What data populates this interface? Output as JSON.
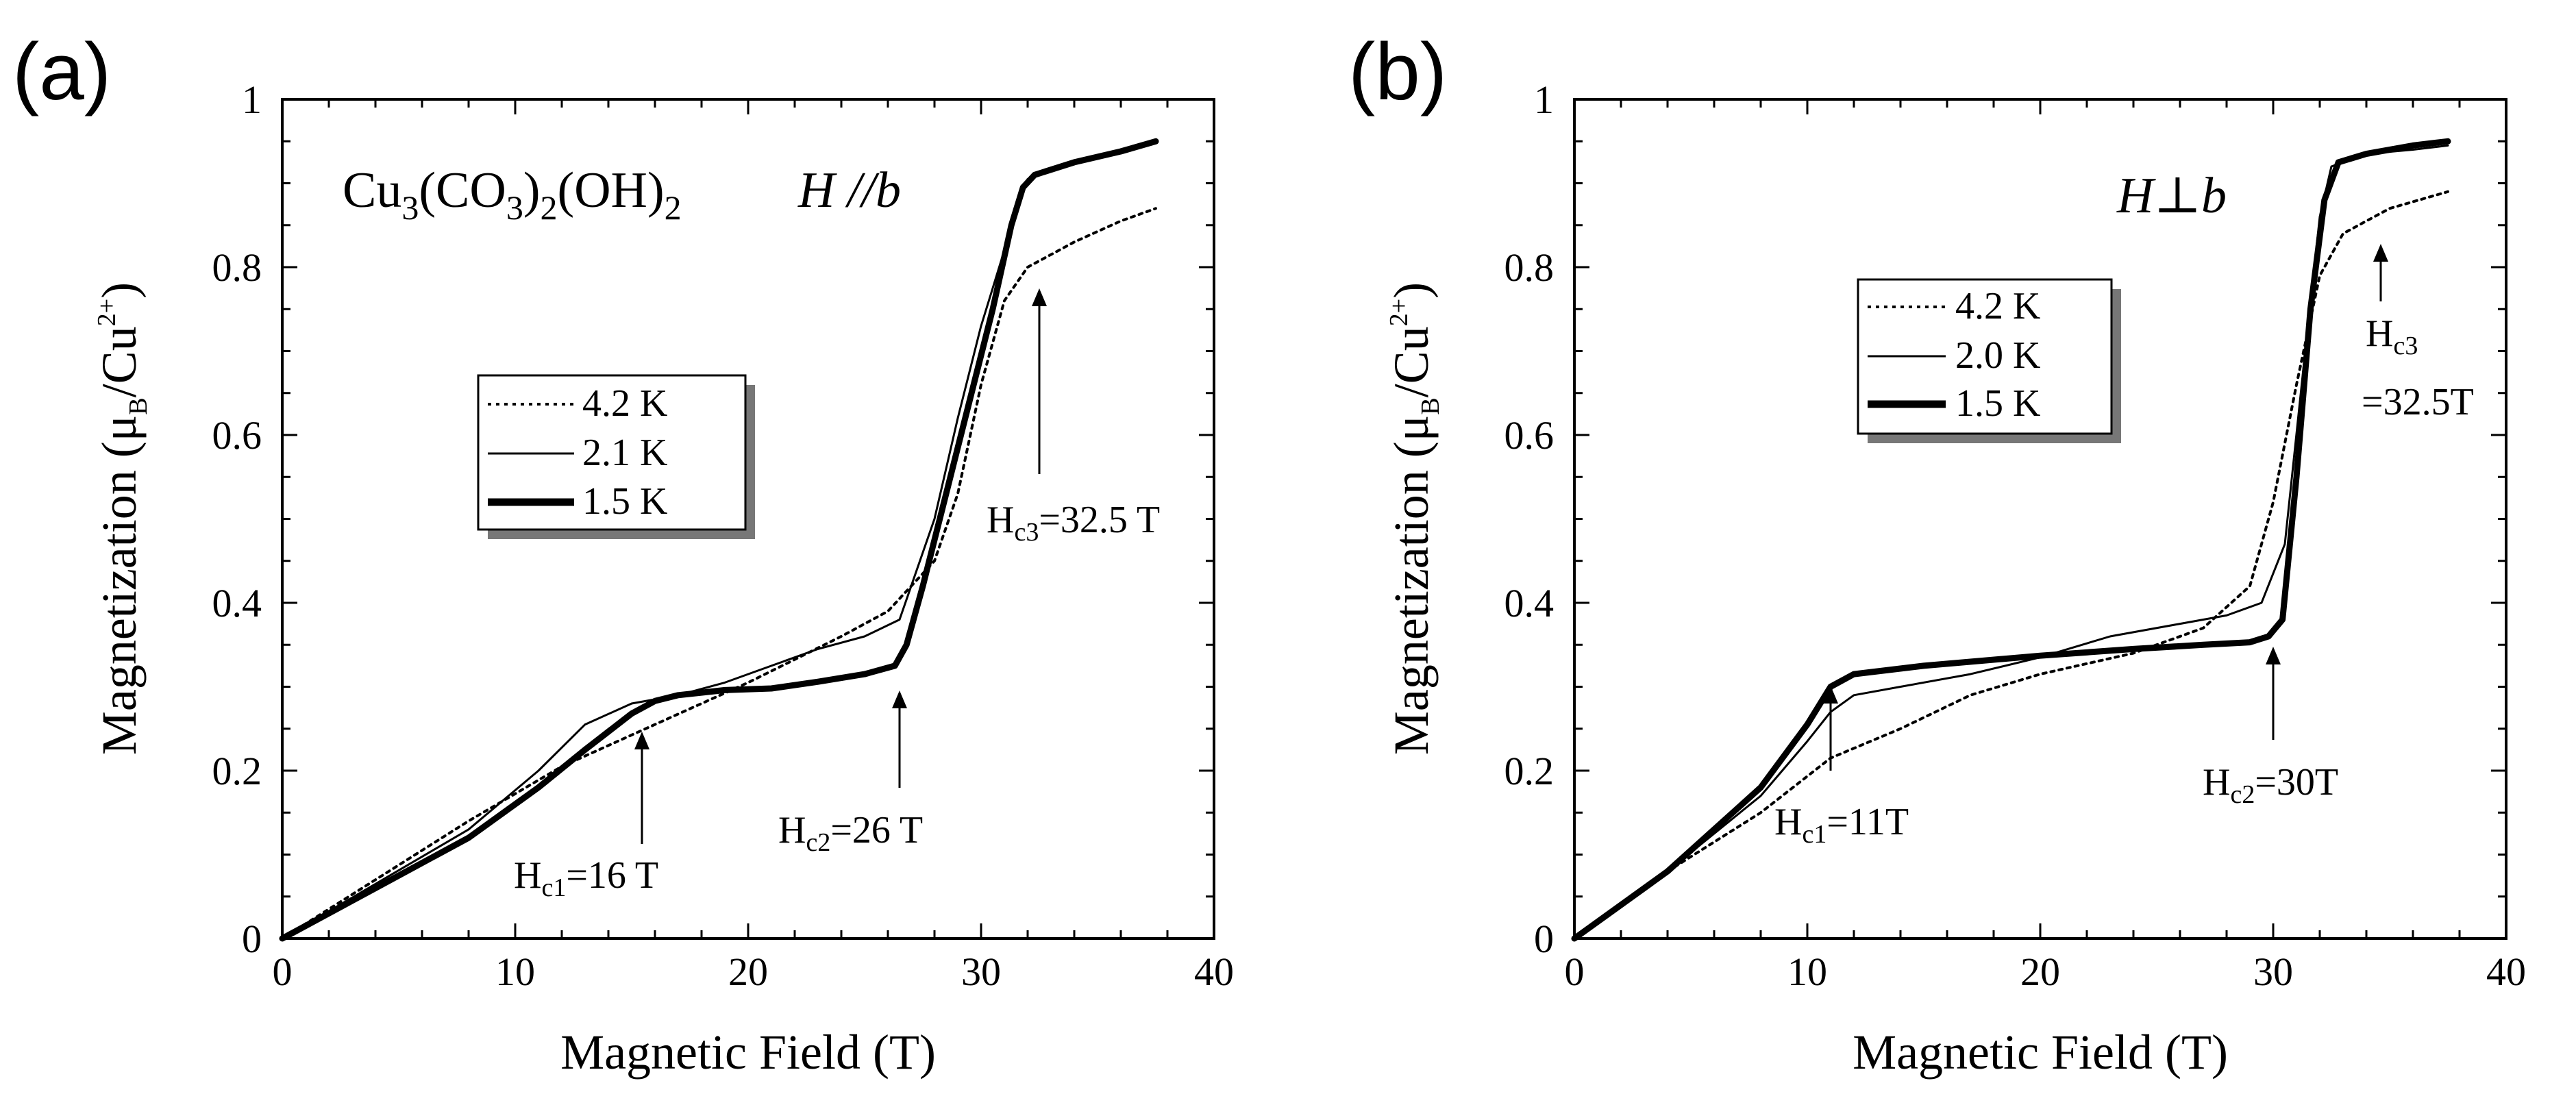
{
  "chart_data": [
    {
      "panel": "(a)",
      "type": "line",
      "title_formula": [
        "Cu",
        "3",
        "(CO",
        "3",
        ")",
        "2",
        "(OH)",
        "2"
      ],
      "title_condition": "H //b",
      "xlabel": "Magnetic Field (T)",
      "ylabel": [
        "Magnetization (μ",
        "B",
        "/Cu",
        "2+",
        ")"
      ],
      "xlim": [
        0,
        40
      ],
      "ylim": [
        0,
        1
      ],
      "xticks": [
        "0",
        "10",
        "20",
        "30",
        "40"
      ],
      "yticks": [
        "0",
        "0.2",
        "0.4",
        "0.6",
        "0.8",
        "1"
      ],
      "legend": [
        "4.2 K",
        "2.1 K",
        "1.5 K"
      ],
      "series": [
        {
          "name": "4.2 K",
          "style": "dotted",
          "points": [
            [
              0,
              0
            ],
            [
              4,
              0.07
            ],
            [
              8,
              0.14
            ],
            [
              12,
              0.205
            ],
            [
              16,
              0.255
            ],
            [
              20,
              0.305
            ],
            [
              24,
              0.36
            ],
            [
              26,
              0.39
            ],
            [
              28,
              0.45
            ],
            [
              29,
              0.53
            ],
            [
              30,
              0.66
            ],
            [
              31,
              0.76
            ],
            [
              32,
              0.8
            ],
            [
              34,
              0.83
            ],
            [
              36,
              0.855
            ],
            [
              37.5,
              0.87
            ]
          ]
        },
        {
          "name": "2.1 K",
          "style": "thin",
          "points": [
            [
              0,
              0
            ],
            [
              4,
              0.065
            ],
            [
              8,
              0.13
            ],
            [
              11,
              0.2
            ],
            [
              13,
              0.255
            ],
            [
              15,
              0.28
            ],
            [
              17,
              0.29
            ],
            [
              19,
              0.305
            ],
            [
              21,
              0.325
            ],
            [
              23,
              0.345
            ],
            [
              25,
              0.36
            ],
            [
              26.5,
              0.38
            ],
            [
              27,
              0.42
            ],
            [
              28,
              0.5
            ],
            [
              29,
              0.62
            ],
            [
              30,
              0.73
            ],
            [
              31,
              0.82
            ],
            [
              31.6,
              0.88
            ],
            [
              32,
              0.905
            ],
            [
              34,
              0.925
            ],
            [
              36,
              0.94
            ],
            [
              37.5,
              0.95
            ]
          ]
        },
        {
          "name": "1.5 K",
          "style": "thick",
          "points": [
            [
              0,
              0
            ],
            [
              4,
              0.06
            ],
            [
              8,
              0.12
            ],
            [
              11,
              0.18
            ],
            [
              13,
              0.225
            ],
            [
              15,
              0.268
            ],
            [
              16,
              0.283
            ],
            [
              17,
              0.29
            ],
            [
              19,
              0.296
            ],
            [
              21,
              0.298
            ],
            [
              23,
              0.306
            ],
            [
              25,
              0.315
            ],
            [
              26.3,
              0.325
            ],
            [
              26.8,
              0.35
            ],
            [
              27.5,
              0.42
            ],
            [
              28.5,
              0.53
            ],
            [
              29.5,
              0.64
            ],
            [
              30.5,
              0.75
            ],
            [
              31.3,
              0.85
            ],
            [
              31.8,
              0.895
            ],
            [
              32.3,
              0.91
            ],
            [
              34,
              0.925
            ],
            [
              36,
              0.938
            ],
            [
              37.5,
              0.95
            ]
          ]
        }
      ],
      "annotations": [
        {
          "main": "H",
          "sub": "c1",
          "tail": "=16 T",
          "x": 16,
          "y": 0.235
        },
        {
          "main": "H",
          "sub": "c2",
          "tail": "=26 T",
          "x": 26.5,
          "y": 0.295
        },
        {
          "main": "H",
          "sub": "c3",
          "tail": "=32.5 T",
          "x": 32.5,
          "y": 0.78
        }
      ]
    },
    {
      "panel": "(b)",
      "type": "line",
      "title_condition": "H⊥b",
      "xlabel": "Magnetic Field (T)",
      "ylabel": [
        "Magnetization (μ",
        "B",
        "/Cu",
        "2+",
        ")"
      ],
      "xlim": [
        0,
        40
      ],
      "ylim": [
        0,
        1
      ],
      "xticks": [
        "0",
        "10",
        "20",
        "30",
        "40"
      ],
      "yticks": [
        "0",
        "0.2",
        "0.4",
        "0.6",
        "0.8",
        "1"
      ],
      "legend": [
        "4.2 K",
        "2.0 K",
        "1.5 K"
      ],
      "series": [
        {
          "name": "4.2 K",
          "style": "dotted",
          "points": [
            [
              0,
              0
            ],
            [
              4,
              0.08
            ],
            [
              8,
              0.15
            ],
            [
              11,
              0.215
            ],
            [
              14,
              0.25
            ],
            [
              17,
              0.29
            ],
            [
              20,
              0.315
            ],
            [
              24,
              0.34
            ],
            [
              27,
              0.37
            ],
            [
              29,
              0.42
            ],
            [
              30,
              0.52
            ],
            [
              31,
              0.66
            ],
            [
              32,
              0.79
            ],
            [
              33,
              0.84
            ],
            [
              35,
              0.87
            ],
            [
              37.5,
              0.89
            ]
          ]
        },
        {
          "name": "2.0 K",
          "style": "thin",
          "points": [
            [
              0,
              0
            ],
            [
              4,
              0.08
            ],
            [
              8,
              0.17
            ],
            [
              10,
              0.235
            ],
            [
              11,
              0.27
            ],
            [
              12,
              0.29
            ],
            [
              14,
              0.3
            ],
            [
              17,
              0.315
            ],
            [
              20,
              0.335
            ],
            [
              23,
              0.36
            ],
            [
              26,
              0.375
            ],
            [
              28,
              0.385
            ],
            [
              29.5,
              0.4
            ],
            [
              30.5,
              0.47
            ],
            [
              31.3,
              0.68
            ],
            [
              32,
              0.86
            ],
            [
              32.5,
              0.92
            ],
            [
              34,
              0.935
            ],
            [
              36,
              0.94
            ],
            [
              37.5,
              0.945
            ]
          ]
        },
        {
          "name": "1.5 K",
          "style": "thick",
          "points": [
            [
              0,
              0
            ],
            [
              4,
              0.08
            ],
            [
              8,
              0.18
            ],
            [
              10,
              0.255
            ],
            [
              11,
              0.3
            ],
            [
              12,
              0.315
            ],
            [
              15,
              0.325
            ],
            [
              20,
              0.337
            ],
            [
              24,
              0.345
            ],
            [
              27,
              0.35
            ],
            [
              29,
              0.353
            ],
            [
              29.8,
              0.36
            ],
            [
              30.4,
              0.38
            ],
            [
              31,
              0.55
            ],
            [
              31.6,
              0.75
            ],
            [
              32.2,
              0.88
            ],
            [
              32.8,
              0.925
            ],
            [
              34,
              0.935
            ],
            [
              36,
              0.945
            ],
            [
              37.5,
              0.95
            ]
          ]
        }
      ],
      "annotations": [
        {
          "main": "H",
          "sub": "c1",
          "tail": "=11T",
          "x": 11,
          "y": 0.285
        },
        {
          "main": "H",
          "sub": "c2",
          "tail": "=30T",
          "x": 30,
          "y": 0.345
        },
        {
          "main": "H",
          "sub": "c3",
          "tail": "=32.5T",
          "x": 33.5,
          "y": 0.8
        }
      ]
    }
  ]
}
